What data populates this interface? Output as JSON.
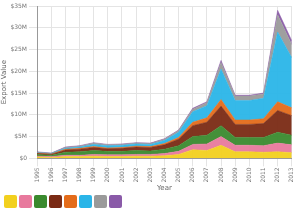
{
  "chart_data": {
    "type": "area",
    "stacked": true,
    "grid": true,
    "x_label": "Year",
    "y_label": "Export Value",
    "categories": [
      "1995",
      "1996",
      "1997",
      "1998",
      "1999",
      "2000",
      "2001",
      "2002",
      "2003",
      "2004",
      "2005",
      "2006",
      "2007",
      "2008",
      "2009",
      "2010",
      "2011",
      "2012",
      "2013"
    ],
    "ylim": [
      0,
      35000000
    ],
    "yticks": [
      {
        "value": 0,
        "label": "$0"
      },
      {
        "value": 5000000,
        "label": "$5M"
      },
      {
        "value": 10000000,
        "label": "$10M"
      },
      {
        "value": 15000000,
        "label": "$15M"
      },
      {
        "value": 20000000,
        "label": "$20M"
      },
      {
        "value": 25000000,
        "label": "$25M"
      },
      {
        "value": 30000000,
        "label": "$30M"
      },
      {
        "value": 35000000,
        "label": "$35M"
      }
    ],
    "series": [
      {
        "color": "#f2d01e",
        "values": [
          300000,
          200000,
          400000,
          400000,
          500000,
          400000,
          400000,
          500000,
          500000,
          600000,
          900000,
          2000000,
          1800000,
          3000000,
          1500000,
          1500000,
          1400000,
          1500000,
          1300000
        ]
      },
      {
        "color": "#e8799d",
        "values": [
          200000,
          200000,
          300000,
          300000,
          400000,
          400000,
          400000,
          400000,
          400000,
          500000,
          700000,
          1200000,
          1500000,
          2000000,
          1500000,
          1500000,
          1500000,
          2000000,
          1800000
        ]
      },
      {
        "color": "#3a8a2e",
        "values": [
          400000,
          300000,
          700000,
          800000,
          900000,
          800000,
          800000,
          900000,
          800000,
          1000000,
          1300000,
          1800000,
          2000000,
          2500000,
          1800000,
          1800000,
          1900000,
          2500000,
          2200000
        ]
      },
      {
        "color": "#7a2a14",
        "values": [
          200000,
          200000,
          500000,
          600000,
          700000,
          600000,
          700000,
          800000,
          800000,
          1000000,
          1500000,
          2500000,
          3000000,
          4500000,
          3000000,
          3000000,
          3200000,
          5000000,
          4500000
        ]
      },
      {
        "color": "#e46c1a",
        "values": [
          100000,
          100000,
          200000,
          200000,
          200000,
          200000,
          200000,
          200000,
          200000,
          300000,
          400000,
          800000,
          1000000,
          1500000,
          1000000,
          1000000,
          1100000,
          2000000,
          1800000
        ]
      },
      {
        "color": "#2ab5e8",
        "values": [
          100000,
          100000,
          200000,
          300000,
          500000,
          500000,
          500000,
          500000,
          500000,
          700000,
          1200000,
          2400000,
          2800000,
          7000000,
          4500000,
          4500000,
          4700000,
          16000000,
          11500000
        ]
      },
      {
        "color": "#9a9a9a",
        "values": [
          100000,
          50000,
          200000,
          200000,
          300000,
          200000,
          200000,
          200000,
          200000,
          300000,
          400000,
          600000,
          700000,
          1500000,
          1000000,
          1000000,
          1000000,
          4000000,
          3000000
        ]
      },
      {
        "color": "#8a5aa8",
        "values": [
          100000,
          50000,
          100000,
          100000,
          100000,
          100000,
          100000,
          100000,
          100000,
          100000,
          100000,
          200000,
          200000,
          500000,
          200000,
          200000,
          200000,
          1000000,
          900000
        ]
      }
    ]
  }
}
